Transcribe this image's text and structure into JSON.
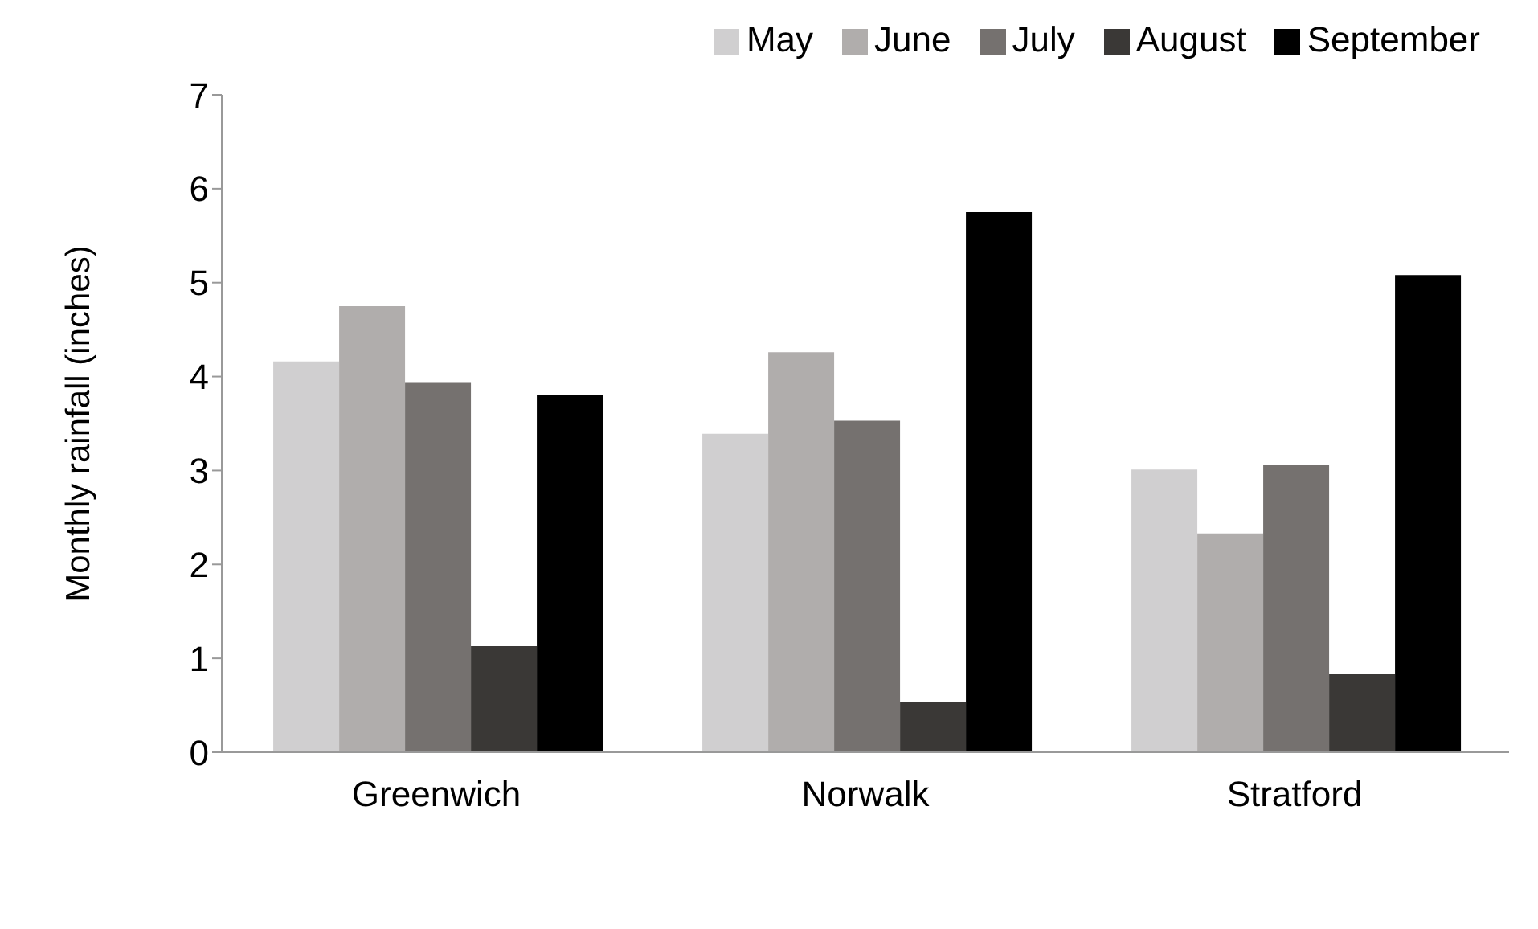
{
  "chart_data": {
    "type": "bar",
    "ylabel": "Monthly rainfall (inches)",
    "categories": [
      "Greenwich",
      "Norwalk",
      "Stratford"
    ],
    "series": [
      {
        "name": "May",
        "color": "#d0cfd0",
        "values": [
          4.16,
          3.39,
          3.01
        ]
      },
      {
        "name": "June",
        "color": "#b0adac",
        "values": [
          4.75,
          4.26,
          2.33
        ]
      },
      {
        "name": "July",
        "color": "#75716f",
        "values": [
          3.94,
          3.53,
          3.06
        ]
      },
      {
        "name": "August",
        "color": "#3a3836",
        "values": [
          1.13,
          0.54,
          0.83
        ]
      },
      {
        "name": "September",
        "color": "#000000",
        "values": [
          3.8,
          5.75,
          5.08
        ]
      }
    ],
    "ylim": [
      0,
      7
    ],
    "yticks": [
      0,
      1,
      2,
      3,
      4,
      5,
      6,
      7
    ],
    "grid": false,
    "legend": "top right"
  }
}
